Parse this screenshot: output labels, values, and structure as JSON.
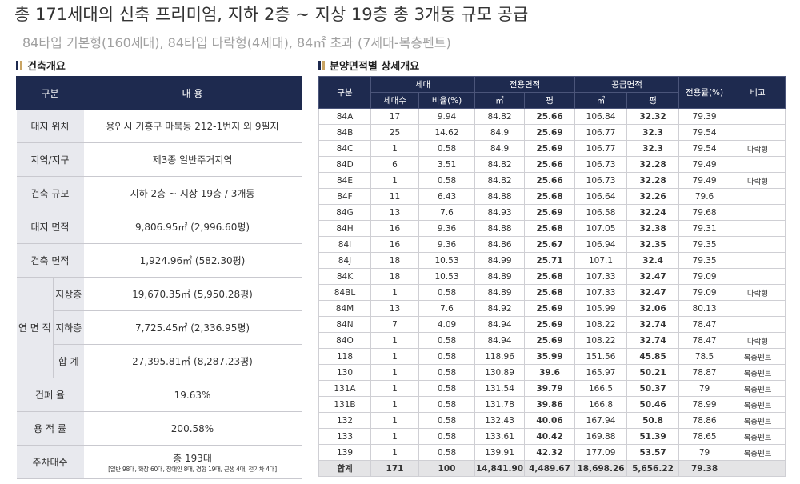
{
  "header": {
    "title": "총 171세대의 신축 프리미엄, 지하 2층 ~ 지상 19층 총 3개동 규모 공급",
    "subtitle": "84타입 기본형(160세대), 84타입 다락형(4세대), 84㎡ 초과 (7세대-복층펜트)"
  },
  "overview": {
    "heading": "건축개요",
    "header": [
      "구분",
      "내 용"
    ],
    "rows": [
      {
        "label": "대지 위치",
        "value": "용인시 기흥구 마북동 212-1번지 외 9필지"
      },
      {
        "label": "지역/지구",
        "value": "제3종 일반주거지역"
      },
      {
        "label": "건축 규모",
        "value": "지하 2층 ~ 지상 19층 / 3개동"
      },
      {
        "label": "대지 면적",
        "value": "9,806.95㎡ (2,996.60평)"
      },
      {
        "label": "건축 면적",
        "value": "1,924.96㎡ (582.30평)"
      },
      {
        "label": "연 면 적",
        "sub": [
          {
            "label": "지상층",
            "value": "19,670.35㎡ (5,950.28평)"
          },
          {
            "label": "지하층",
            "value": "7,725.45㎡ (2,336.95평)"
          },
          {
            "label": "합 계",
            "value": "27,395.81㎡ (8,287.23평)"
          }
        ]
      },
      {
        "label": "건폐 율",
        "value": "19.63%"
      },
      {
        "label": "용 적 률",
        "value": "200.58%"
      },
      {
        "label": "주차대수",
        "value": "총 193대",
        "note": "[일반 98대, 확장 60대, 장애인 8대, 경형 19대, 근생 4대, 전기차 4대]"
      }
    ]
  },
  "units": {
    "heading": "분양면적별 상세개요",
    "header_top": [
      "구분",
      "세대",
      "전용면적",
      "공급면적",
      "전용률(%)",
      "비고"
    ],
    "header_sub": [
      "세대수",
      "비율(%)",
      "㎡",
      "평",
      "㎡",
      "평"
    ],
    "rows": [
      [
        "84A",
        "17",
        "9.94",
        "84.82",
        "25.66",
        "106.84",
        "32.32",
        "79.39",
        null
      ],
      [
        "84B",
        "25",
        "14.62",
        "84.9",
        "25.69",
        "106.77",
        "32.3",
        "79.54",
        null
      ],
      [
        "84C",
        "1",
        "0.58",
        "84.9",
        "25.69",
        "106.77",
        "32.3",
        "79.54",
        "다락형"
      ],
      [
        "84D",
        "6",
        "3.51",
        "84.82",
        "25.66",
        "106.73",
        "32.28",
        "79.49",
        null
      ],
      [
        "84E",
        "1",
        "0.58",
        "84.82",
        "25.66",
        "106.73",
        "32.28",
        "79.49",
        "다락형"
      ],
      [
        "84F",
        "11",
        "6.43",
        "84.88",
        "25.68",
        "106.64",
        "32.26",
        "79.6",
        null
      ],
      [
        "84G",
        "13",
        "7.6",
        "84.93",
        "25.69",
        "106.58",
        "32.24",
        "79.68",
        null
      ],
      [
        "84H",
        "16",
        "9.36",
        "84.88",
        "25.68",
        "107.05",
        "32.38",
        "79.31",
        null
      ],
      [
        "84I",
        "16",
        "9.36",
        "84.86",
        "25.67",
        "106.94",
        "32.35",
        "79.35",
        null
      ],
      [
        "84J",
        "18",
        "10.53",
        "84.99",
        "25.71",
        "107.1",
        "32.4",
        "79.35",
        null
      ],
      [
        "84K",
        "18",
        "10.53",
        "84.89",
        "25.68",
        "107.33",
        "32.47",
        "79.09",
        null
      ],
      [
        "84BL",
        "1",
        "0.58",
        "84.89",
        "25.68",
        "107.33",
        "32.47",
        "79.09",
        "다락형"
      ],
      [
        "84M",
        "13",
        "7.6",
        "84.92",
        "25.69",
        "105.99",
        "32.06",
        "80.13",
        null
      ],
      [
        "84N",
        "7",
        "4.09",
        "84.94",
        "25.69",
        "108.22",
        "32.74",
        "78.47",
        null
      ],
      [
        "84O",
        "1",
        "0.58",
        "84.94",
        "25.69",
        "108.22",
        "32.74",
        "78.47",
        "다락형"
      ],
      [
        "118",
        "1",
        "0.58",
        "118.96",
        "35.99",
        "151.56",
        "45.85",
        "78.5",
        "복층펜트"
      ],
      [
        "130",
        "1",
        "0.58",
        "130.89",
        "39.6",
        "165.97",
        "50.21",
        "78.87",
        "복층펜트"
      ],
      [
        "131A",
        "1",
        "0.58",
        "131.54",
        "39.79",
        "166.5",
        "50.37",
        "79",
        "복층펜트"
      ],
      [
        "131B",
        "1",
        "0.58",
        "131.78",
        "39.86",
        "166.8",
        "50.46",
        "78.99",
        "복층펜트"
      ],
      [
        "132",
        "1",
        "0.58",
        "132.43",
        "40.06",
        "167.94",
        "50.8",
        "78.86",
        "복층펜트"
      ],
      [
        "133",
        "1",
        "0.58",
        "133.61",
        "40.42",
        "169.88",
        "51.39",
        "78.65",
        "복층펜트"
      ],
      [
        "139",
        "1",
        "0.58",
        "139.91",
        "42.32",
        "177.09",
        "53.57",
        "79",
        "복층펜트"
      ],
      [
        "합계",
        "171",
        "100",
        "14,841.90",
        "4,489.67",
        "18,698.26",
        "5,656.22",
        "79.38",
        null
      ]
    ]
  }
}
